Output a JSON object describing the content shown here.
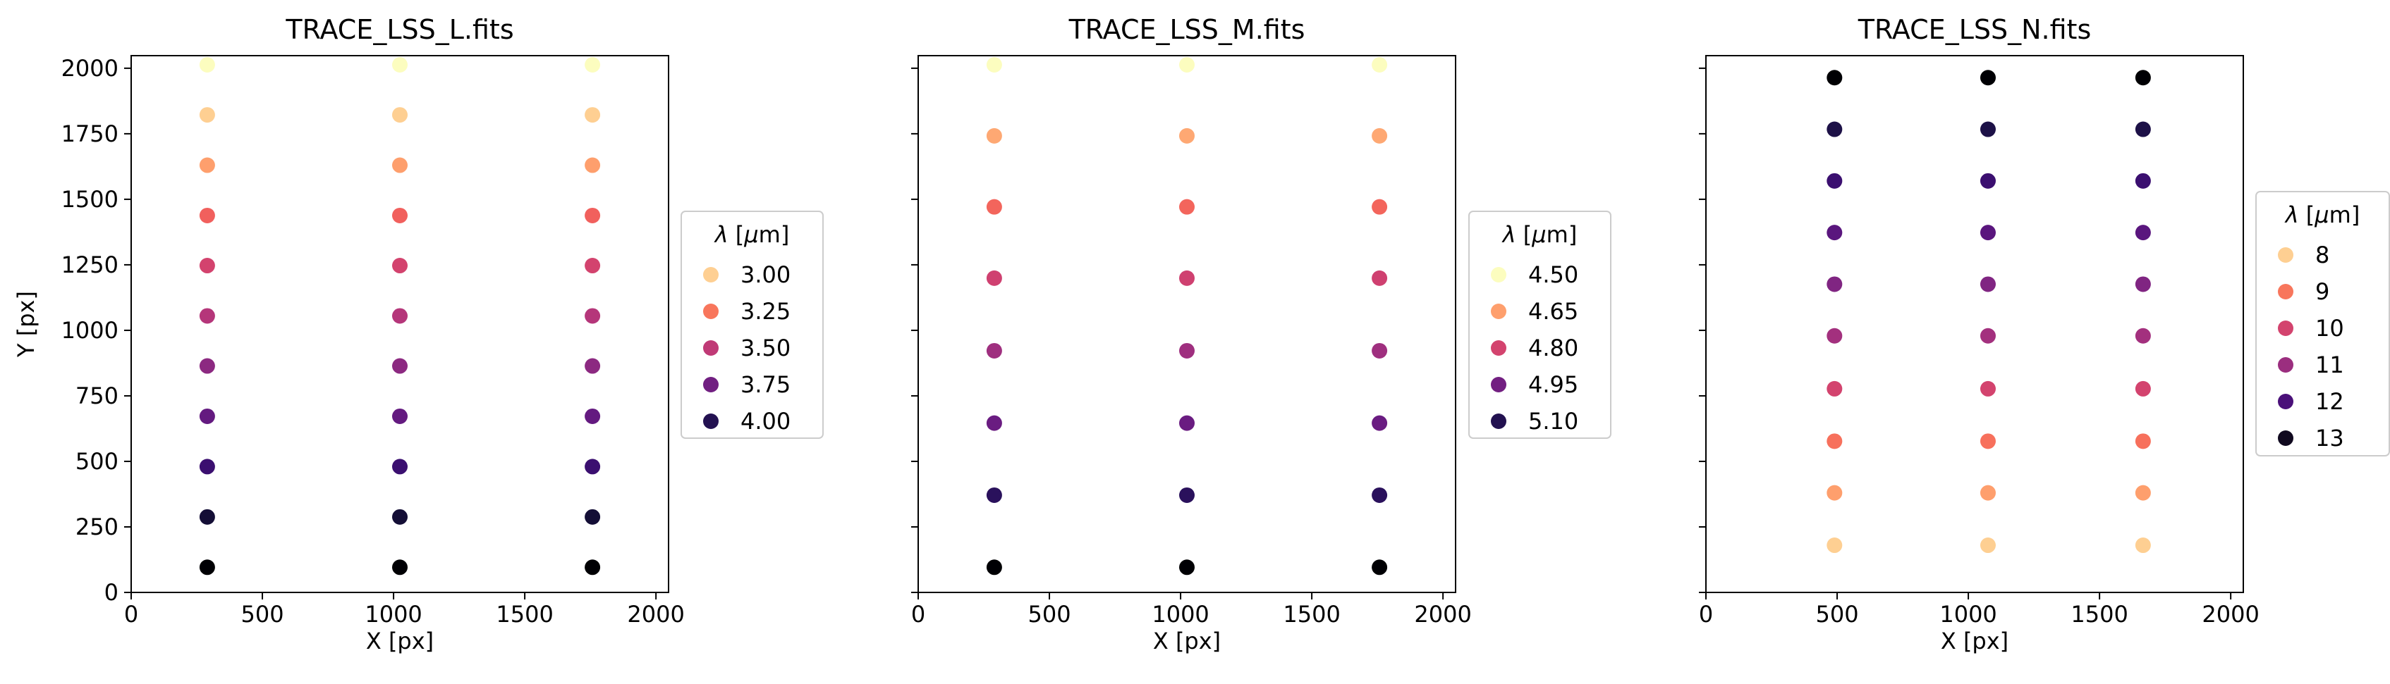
{
  "chart_data": [
    {
      "type": "scatter",
      "title": "TRACE_LSS_L.fits",
      "xlabel": "X [px]",
      "ylabel": "Y [px]",
      "xlim": [
        0,
        2048
      ],
      "ylim": [
        0,
        2048
      ],
      "xticks": [
        "0",
        "500",
        "1000",
        "1500",
        "2000"
      ],
      "yticks": [
        "0",
        "250",
        "500",
        "750",
        "1000",
        "1250",
        "1500",
        "1750",
        "2000"
      ],
      "show_yticklabels": true,
      "grid": false,
      "x": [
        290,
        1024,
        1758
      ],
      "points": [
        {
          "y": 2013,
          "color": "#fcfdbf"
        },
        {
          "y": 1822,
          "color": "#fecf92"
        },
        {
          "y": 1630,
          "color": "#fe9f6d"
        },
        {
          "y": 1438,
          "color": "#f1605d"
        },
        {
          "y": 1247,
          "color": "#d3436e"
        },
        {
          "y": 1055,
          "color": "#b5367a"
        },
        {
          "y": 864,
          "color": "#8c2981"
        },
        {
          "y": 672,
          "color": "#641a80"
        },
        {
          "y": 480,
          "color": "#3b0f70"
        },
        {
          "y": 288,
          "color": "#140e36"
        },
        {
          "y": 96,
          "color": "#000004"
        }
      ],
      "legend": {
        "title_html": "<tspan font-style='italic'>λ</tspan> [<tspan font-style='italic'>μ</tspan>m]",
        "placement": "outside-right",
        "entries": [
          {
            "label": "3.00",
            "color": "#fecf92"
          },
          {
            "label": "3.25",
            "color": "#f8765c"
          },
          {
            "label": "3.50",
            "color": "#c03a76"
          },
          {
            "label": "3.75",
            "color": "#711f81"
          },
          {
            "label": "4.00",
            "color": "#231151"
          }
        ]
      }
    },
    {
      "type": "scatter",
      "title": "TRACE_LSS_M.fits",
      "xlabel": "X [px]",
      "ylabel": "",
      "xlim": [
        0,
        2048
      ],
      "ylim": [
        0,
        2048
      ],
      "xticks": [
        "0",
        "500",
        "1000",
        "1500",
        "2000"
      ],
      "yticks": [
        "0",
        "250",
        "500",
        "750",
        "1000",
        "1250",
        "1500",
        "1750",
        "2000"
      ],
      "show_yticklabels": false,
      "grid": false,
      "x": [
        290,
        1024,
        1758
      ],
      "points": [
        {
          "y": 2013,
          "color": "#fcfdbf"
        },
        {
          "y": 1742,
          "color": "#fea873"
        },
        {
          "y": 1471,
          "color": "#f3655c"
        },
        {
          "y": 1199,
          "color": "#cf4070"
        },
        {
          "y": 922,
          "color": "#9f2f7f"
        },
        {
          "y": 646,
          "color": "#6a1c81"
        },
        {
          "y": 371,
          "color": "#2a115c"
        },
        {
          "y": 96,
          "color": "#000004"
        }
      ],
      "legend": {
        "title_html": "<tspan font-style='italic'>λ</tspan> [<tspan font-style='italic'>μ</tspan>m]",
        "placement": "outside-right",
        "entries": [
          {
            "label": "4.50",
            "color": "#fcfdbf"
          },
          {
            "label": "4.65",
            "color": "#fe9f6d"
          },
          {
            "label": "4.80",
            "color": "#d3436e"
          },
          {
            "label": "4.95",
            "color": "#721f81"
          },
          {
            "label": "5.10",
            "color": "#221150"
          }
        ]
      }
    },
    {
      "type": "scatter",
      "title": "TRACE_LSS_N.fits",
      "xlabel": "X [px]",
      "ylabel": "",
      "xlim": [
        0,
        2048
      ],
      "ylim": [
        0,
        2048
      ],
      "xticks": [
        "0",
        "500",
        "1000",
        "1500",
        "2000"
      ],
      "yticks": [
        "0",
        "250",
        "500",
        "750",
        "1000",
        "1250",
        "1500",
        "1750",
        "2000"
      ],
      "show_yticklabels": false,
      "grid": false,
      "x": [
        490,
        1075,
        1666
      ],
      "points": [
        {
          "y": 1964,
          "color": "#000004"
        },
        {
          "y": 1767,
          "color": "#1d1147"
        },
        {
          "y": 1570,
          "color": "#3b0f70"
        },
        {
          "y": 1373,
          "color": "#5a167e"
        },
        {
          "y": 1176,
          "color": "#802582"
        },
        {
          "y": 979,
          "color": "#a3307e"
        },
        {
          "y": 777,
          "color": "#d3436e"
        },
        {
          "y": 577,
          "color": "#f7705c"
        },
        {
          "y": 380,
          "color": "#fe9f6d"
        },
        {
          "y": 180,
          "color": "#fecf92"
        }
      ],
      "legend": {
        "title_html": "<tspan font-style='italic'>λ</tspan> [<tspan font-style='italic'>μ</tspan>m]",
        "placement": "outside-right",
        "entries": [
          {
            "label": "8",
            "color": "#fecf92"
          },
          {
            "label": "9",
            "color": "#f8765c"
          },
          {
            "label": "10",
            "color": "#d3436e"
          },
          {
            "label": "11",
            "color": "#9b2e7f"
          },
          {
            "label": "12",
            "color": "#4a1079"
          },
          {
            "label": "13",
            "color": "#10091f"
          }
        ]
      }
    }
  ]
}
